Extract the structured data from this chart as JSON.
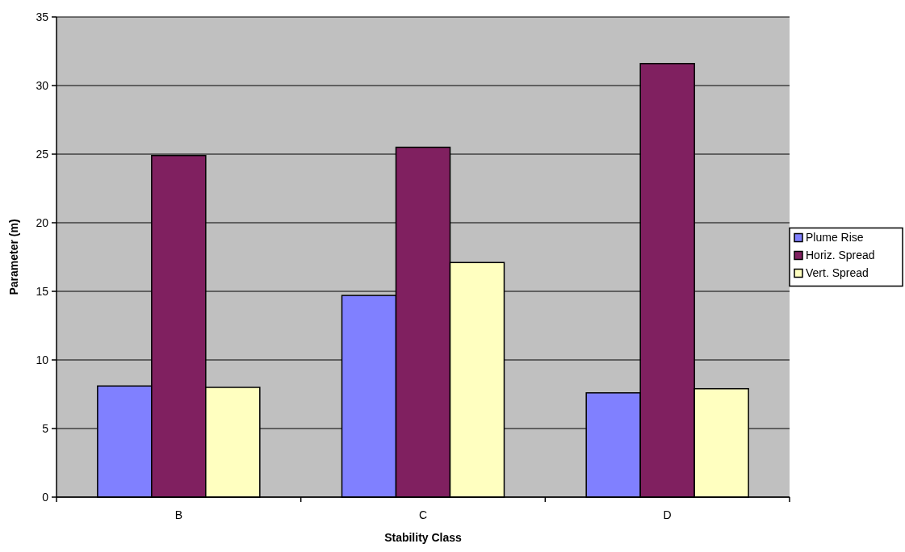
{
  "chart_data": {
    "type": "bar",
    "xlabel": "Stability Class",
    "ylabel": "Parameter (m)",
    "categories": [
      "B",
      "C",
      "D"
    ],
    "series": [
      {
        "name": "Plume Rise",
        "color": "#8080ff",
        "values": [
          8.1,
          14.7,
          7.6
        ]
      },
      {
        "name": "Horiz. Spread",
        "color": "#802060",
        "values": [
          24.9,
          25.5,
          31.6
        ]
      },
      {
        "name": "Vert. Spread",
        "color": "#ffffc0",
        "values": [
          8.0,
          17.1,
          7.9
        ]
      }
    ],
    "ylim": [
      0,
      35
    ],
    "yticks": [
      0,
      5,
      10,
      15,
      20,
      25,
      30,
      35
    ],
    "grid": "y",
    "legend": "right"
  }
}
